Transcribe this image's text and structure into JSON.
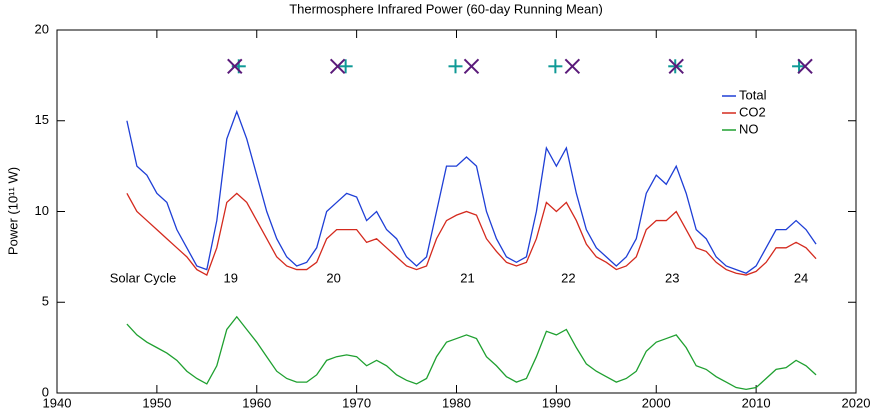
{
  "chart_data": {
    "type": "line",
    "title": "Thermosphere Infrared Power (60-day Running Mean)",
    "y_label": "Power (10¹¹ W)",
    "xlim": [
      1940,
      2020
    ],
    "xticks": [
      1940,
      1950,
      1960,
      1970,
      1980,
      1990,
      2000,
      2010,
      2020
    ],
    "ylim": [
      0,
      20
    ],
    "yticks": [
      0,
      5,
      10,
      15,
      20
    ],
    "legend": "upper right",
    "x": [
      1947,
      1948,
      1949,
      1950,
      1951,
      1952,
      1953,
      1954,
      1955,
      1956,
      1957,
      1958,
      1959,
      1960,
      1961,
      1962,
      1963,
      1964,
      1965,
      1966,
      1967,
      1968,
      1969,
      1970,
      1971,
      1972,
      1973,
      1974,
      1975,
      1976,
      1977,
      1978,
      1979,
      1980,
      1981,
      1982,
      1983,
      1984,
      1985,
      1986,
      1987,
      1988,
      1989,
      1990,
      1991,
      1992,
      1993,
      1994,
      1995,
      1996,
      1997,
      1998,
      1999,
      2000,
      2001,
      2002,
      2003,
      2004,
      2005,
      2006,
      2007,
      2008,
      2009,
      2010,
      2011,
      2012,
      2013,
      2014,
      2015,
      2016
    ],
    "series": [
      {
        "name": "Total",
        "color": "#1f3fd6",
        "values": [
          15,
          12.5,
          12,
          11,
          10.5,
          9,
          8,
          7,
          6.8,
          9.5,
          14,
          15.5,
          14,
          12,
          10,
          8.5,
          7.5,
          7,
          7.2,
          8,
          10,
          10.5,
          11,
          10.8,
          9.5,
          10,
          9,
          8.5,
          7.5,
          7,
          7.5,
          10,
          12.5,
          12.5,
          13,
          12.5,
          10,
          8.5,
          7.5,
          7.2,
          7.5,
          10,
          13.5,
          12.5,
          13.5,
          11,
          9,
          8,
          7.5,
          7,
          7.5,
          8.5,
          11,
          12,
          11.5,
          12.5,
          11,
          9,
          8.5,
          7.5,
          7,
          6.8,
          6.6,
          7,
          8,
          9,
          9,
          9.5,
          9,
          8.2
        ]
      },
      {
        "name": "CO2",
        "color": "#d42a1e",
        "values": [
          11,
          10,
          9.5,
          9,
          8.5,
          8,
          7.5,
          6.8,
          6.5,
          8,
          10.5,
          11,
          10.5,
          9.5,
          8.5,
          7.5,
          7,
          6.8,
          6.8,
          7.2,
          8.5,
          9,
          9,
          9,
          8.3,
          8.5,
          8,
          7.5,
          7,
          6.8,
          7,
          8.5,
          9.5,
          9.8,
          10,
          9.8,
          8.5,
          7.8,
          7.2,
          7,
          7.2,
          8.5,
          10.5,
          10,
          10.5,
          9.5,
          8.2,
          7.5,
          7.2,
          6.8,
          7,
          7.5,
          9,
          9.5,
          9.5,
          10,
          9,
          8,
          7.8,
          7.2,
          6.8,
          6.6,
          6.5,
          6.7,
          7.2,
          8,
          8,
          8.3,
          8,
          7.4
        ]
      },
      {
        "name": "NO",
        "color": "#1fa030",
        "values": [
          3.8,
          3.2,
          2.8,
          2.5,
          2.2,
          1.8,
          1.2,
          0.8,
          0.5,
          1.5,
          3.5,
          4.2,
          3.5,
          2.8,
          2.0,
          1.2,
          0.8,
          0.6,
          0.6,
          1.0,
          1.8,
          2.0,
          2.1,
          2.0,
          1.5,
          1.8,
          1.5,
          1.0,
          0.7,
          0.5,
          0.8,
          2.0,
          2.8,
          3.0,
          3.2,
          3.0,
          2.0,
          1.5,
          0.9,
          0.6,
          0.8,
          2.0,
          3.4,
          3.2,
          3.5,
          2.5,
          1.6,
          1.2,
          0.9,
          0.6,
          0.8,
          1.2,
          2.3,
          2.8,
          3.0,
          3.2,
          2.5,
          1.5,
          1.3,
          0.9,
          0.6,
          0.3,
          0.2,
          0.3,
          0.8,
          1.3,
          1.4,
          1.8,
          1.5,
          1.0
        ]
      }
    ],
    "markers": [
      {
        "symbol": "plus",
        "color": "#0f9a96",
        "x": [
          1958.2,
          1968.9,
          1979.9,
          1989.9,
          2001.9,
          2014.3
        ],
        "y": [
          18,
          18,
          18,
          18,
          18,
          18
        ]
      },
      {
        "symbol": "cross",
        "color": "#5a1a7a",
        "x": [
          1957.8,
          1968.1,
          1981.5,
          1991.6,
          2002.0,
          2014.9
        ],
        "y": [
          18,
          18,
          18,
          18,
          18,
          18
        ]
      }
    ],
    "cycle_title": "Solar Cycle",
    "cycle_labels": [
      "19",
      "20",
      "21",
      "22",
      "23",
      "24"
    ]
  }
}
